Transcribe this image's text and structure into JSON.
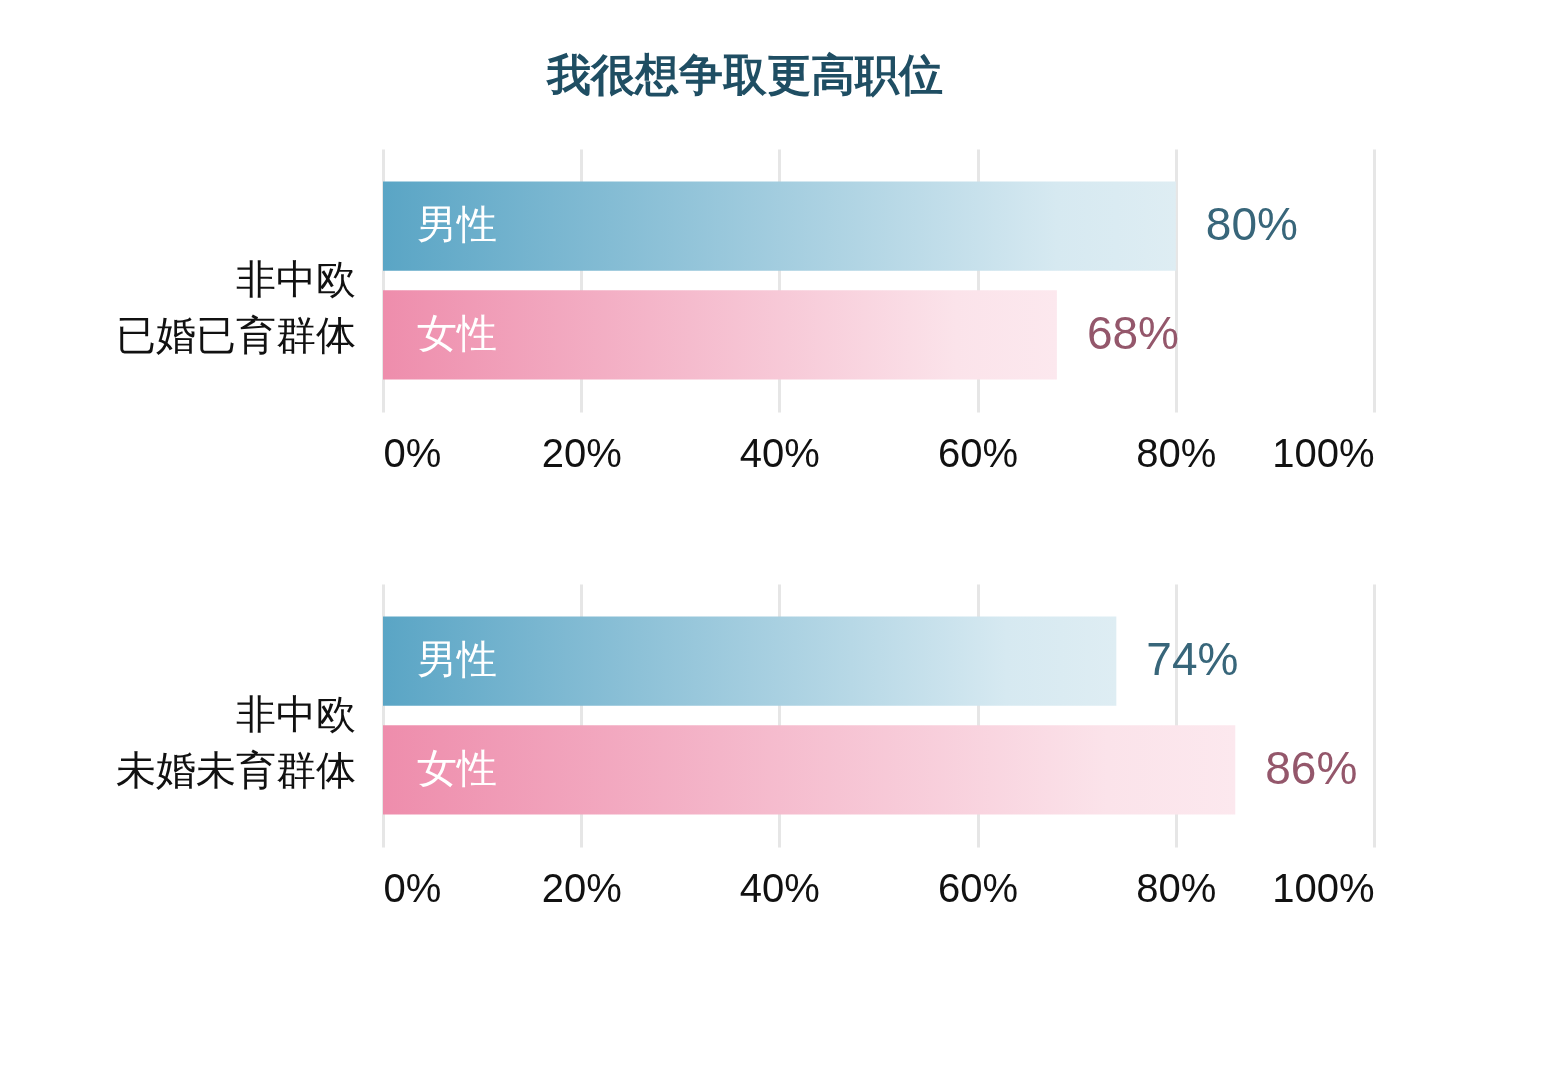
{
  "chart_data": [
    {
      "type": "bar",
      "orientation": "horizontal",
      "title": "我很想争取更高职位",
      "ylabel": "非中欧已婚已育群体",
      "categories": [
        "男性",
        "女性"
      ],
      "values": [
        80,
        68
      ],
      "colors": [
        "#5aa5c5",
        "#ee8dac"
      ],
      "value_labels": [
        "80%",
        "68%"
      ],
      "xlim": [
        0,
        100
      ],
      "xticks": [
        {
          "value": 0,
          "label": "0%"
        },
        {
          "value": 20,
          "label": "20%"
        },
        {
          "value": 40,
          "label": "40%"
        },
        {
          "value": 60,
          "label": "60%"
        },
        {
          "value": 80,
          "label": "80%"
        },
        {
          "value": 100,
          "label": "100%"
        }
      ],
      "grid": "x"
    },
    {
      "type": "bar",
      "orientation": "horizontal",
      "ylabel": "非中欧未婚未育群体",
      "categories": [
        "男性",
        "女性"
      ],
      "values": [
        74,
        86
      ],
      "colors": [
        "#5aa5c5",
        "#ee8dac"
      ],
      "value_labels": [
        "74%",
        "86%"
      ],
      "xlim": [
        0,
        100
      ],
      "xticks": [
        {
          "value": 0,
          "label": "0%"
        },
        {
          "value": 20,
          "label": "20%"
        },
        {
          "value": 40,
          "label": "40%"
        },
        {
          "value": 60,
          "label": "60%"
        },
        {
          "value": 80,
          "label": "80%"
        },
        {
          "value": 100,
          "label": "100%"
        }
      ],
      "grid": "x"
    }
  ]
}
